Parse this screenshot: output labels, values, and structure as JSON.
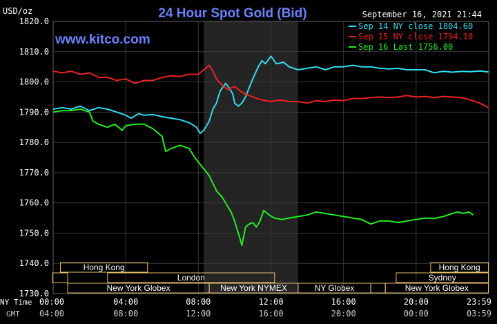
{
  "chart_data": {
    "type": "line",
    "title": "24 Hour Spot Gold (Bid)",
    "watermark": "www.kitco.com",
    "timestamp": "September 16, 2021 21:44",
    "ylabel": "USD/oz",
    "ylim": [
      1730,
      1820
    ],
    "yticks": [
      "1820.0",
      "1810.0",
      "1800.0",
      "1790.0",
      "1780.0",
      "1770.0",
      "1760.0",
      "1750.0",
      "1740.0",
      "1730.0"
    ],
    "xlim": [
      0,
      24
    ],
    "x_row1_label": "NY Time",
    "x_row2_label": "GMT",
    "xticks": [
      {
        "hour": 0,
        "ny": "00:00",
        "gmt": "04:00"
      },
      {
        "hour": 4,
        "ny": "04:00",
        "gmt": "08:00"
      },
      {
        "hour": 8,
        "ny": "08:00",
        "gmt": "12:00"
      },
      {
        "hour": 12,
        "ny": "12:00",
        "gmt": "16:00"
      },
      {
        "hour": 16,
        "ny": "16:00",
        "gmt": "20:00"
      },
      {
        "hour": 20,
        "ny": "20:00",
        "gmt": "00:00"
      },
      {
        "hour": 23.98,
        "ny": "23:59",
        "gmt": "03:59"
      }
    ],
    "shaded_region": [
      8.3,
      13.5
    ],
    "grid": true,
    "legend_position": "top-right",
    "series": [
      {
        "name": "Sep 14 NY close 1804.60",
        "color": "#33ddee",
        "points": [
          [
            0,
            1791
          ],
          [
            0.5,
            1791.5
          ],
          [
            1,
            1791
          ],
          [
            1.5,
            1792
          ],
          [
            2,
            1790.5
          ],
          [
            2.5,
            1791.5
          ],
          [
            3,
            1791
          ],
          [
            3.5,
            1790
          ],
          [
            4,
            1789
          ],
          [
            4.3,
            1788
          ],
          [
            4.7,
            1789.5
          ],
          [
            5,
            1789
          ],
          [
            5.5,
            1789.2
          ],
          [
            6,
            1788.5
          ],
          [
            6.5,
            1788
          ],
          [
            7,
            1787.5
          ],
          [
            7.5,
            1786.5
          ],
          [
            7.9,
            1785
          ],
          [
            8.1,
            1783
          ],
          [
            8.3,
            1784
          ],
          [
            8.6,
            1787
          ],
          [
            8.8,
            1791
          ],
          [
            9,
            1793
          ],
          [
            9.2,
            1797
          ],
          [
            9.5,
            1799.5
          ],
          [
            9.7,
            1798
          ],
          [
            9.9,
            1796
          ],
          [
            10,
            1793
          ],
          [
            10.2,
            1792
          ],
          [
            10.4,
            1793
          ],
          [
            10.6,
            1795
          ],
          [
            10.8,
            1798
          ],
          [
            11,
            1801
          ],
          [
            11.3,
            1805
          ],
          [
            11.5,
            1807
          ],
          [
            11.7,
            1806
          ],
          [
            12,
            1808.5
          ],
          [
            12.3,
            1806
          ],
          [
            12.7,
            1806.5
          ],
          [
            13,
            1805
          ],
          [
            13.5,
            1804
          ],
          [
            14,
            1804.5
          ],
          [
            14.5,
            1805
          ],
          [
            15,
            1804
          ],
          [
            15.5,
            1805
          ],
          [
            16,
            1805
          ],
          [
            16.5,
            1805.5
          ],
          [
            17,
            1805
          ],
          [
            17.5,
            1805
          ],
          [
            18,
            1804.5
          ],
          [
            18.5,
            1804.3
          ],
          [
            19,
            1804.5
          ],
          [
            19.5,
            1804
          ],
          [
            20,
            1804
          ],
          [
            20.5,
            1804
          ],
          [
            21,
            1803
          ],
          [
            21.5,
            1803.5
          ],
          [
            22,
            1803.2
          ],
          [
            22.5,
            1803.5
          ],
          [
            23,
            1803.4
          ],
          [
            23.5,
            1803.6
          ],
          [
            23.98,
            1803.3
          ]
        ]
      },
      {
        "name": "Sep 15 NY close 1794.10",
        "color": "#ee2222",
        "points": [
          [
            0,
            1803.5
          ],
          [
            0.5,
            1803
          ],
          [
            1,
            1803.5
          ],
          [
            1.5,
            1802.5
          ],
          [
            2,
            1803
          ],
          [
            2.5,
            1801.5
          ],
          [
            3,
            1801.5
          ],
          [
            3.5,
            1800.5
          ],
          [
            4,
            1801
          ],
          [
            4.5,
            1799.5
          ],
          [
            5,
            1800.5
          ],
          [
            5.5,
            1800.5
          ],
          [
            6,
            1801.5
          ],
          [
            6.5,
            1802
          ],
          [
            7,
            1801.8
          ],
          [
            7.5,
            1802.5
          ],
          [
            8,
            1802.5
          ],
          [
            8.3,
            1804
          ],
          [
            8.6,
            1805.5
          ],
          [
            8.8,
            1803.5
          ],
          [
            9,
            1801
          ],
          [
            9.3,
            1799
          ],
          [
            9.6,
            1797.5
          ],
          [
            10,
            1798.5
          ],
          [
            10.3,
            1797
          ],
          [
            10.6,
            1796
          ],
          [
            11,
            1795
          ],
          [
            11.5,
            1794
          ],
          [
            12,
            1793.5
          ],
          [
            12.5,
            1794
          ],
          [
            13,
            1793.5
          ],
          [
            13.5,
            1793.5
          ],
          [
            14,
            1793
          ],
          [
            14.5,
            1793.8
          ],
          [
            15,
            1793.5
          ],
          [
            15.5,
            1794
          ],
          [
            16,
            1793.8
          ],
          [
            16.5,
            1794.5
          ],
          [
            17,
            1794.5
          ],
          [
            17.5,
            1794.8
          ],
          [
            18,
            1795
          ],
          [
            18.5,
            1794.8
          ],
          [
            19,
            1795
          ],
          [
            19.5,
            1795.5
          ],
          [
            20,
            1795
          ],
          [
            20.5,
            1795.2
          ],
          [
            21,
            1794.8
          ],
          [
            21.5,
            1795.2
          ],
          [
            22,
            1795
          ],
          [
            22.5,
            1794.8
          ],
          [
            23,
            1794
          ],
          [
            23.5,
            1793
          ],
          [
            23.98,
            1791.5
          ]
        ]
      },
      {
        "name": "Sep 16 Last 1756.00",
        "color": "#22ee22",
        "points": [
          [
            0,
            1790
          ],
          [
            0.5,
            1790.5
          ],
          [
            1,
            1790.5
          ],
          [
            1.5,
            1791
          ],
          [
            2,
            1790
          ],
          [
            2.2,
            1787
          ],
          [
            2.5,
            1786
          ],
          [
            3,
            1785
          ],
          [
            3.4,
            1786
          ],
          [
            3.8,
            1784
          ],
          [
            4,
            1785.5
          ],
          [
            4.5,
            1786
          ],
          [
            5,
            1786
          ],
          [
            5.5,
            1784.5
          ],
          [
            6,
            1782
          ],
          [
            6.2,
            1777
          ],
          [
            6.5,
            1778
          ],
          [
            7,
            1779
          ],
          [
            7.5,
            1778
          ],
          [
            7.8,
            1775
          ],
          [
            8.2,
            1772
          ],
          [
            8.6,
            1769
          ],
          [
            9,
            1764
          ],
          [
            9.3,
            1762
          ],
          [
            9.6,
            1759
          ],
          [
            9.8,
            1757
          ],
          [
            10,
            1754
          ],
          [
            10.2,
            1750
          ],
          [
            10.4,
            1746
          ],
          [
            10.6,
            1752
          ],
          [
            10.8,
            1753
          ],
          [
            11,
            1753.5
          ],
          [
            11.2,
            1752
          ],
          [
            11.4,
            1754
          ],
          [
            11.6,
            1757.5
          ],
          [
            11.9,
            1756
          ],
          [
            12.2,
            1755
          ],
          [
            12.6,
            1754.5
          ],
          [
            13,
            1755
          ],
          [
            13.5,
            1755.5
          ],
          [
            14,
            1756
          ],
          [
            14.5,
            1757
          ],
          [
            15,
            1756.5
          ],
          [
            15.5,
            1756
          ],
          [
            16,
            1755.5
          ],
          [
            16.5,
            1755
          ],
          [
            17,
            1754.5
          ],
          [
            17.5,
            1753
          ],
          [
            18,
            1754
          ],
          [
            18.5,
            1754
          ],
          [
            19,
            1753.5
          ],
          [
            19.5,
            1754
          ],
          [
            20,
            1754.5
          ],
          [
            20.5,
            1755
          ],
          [
            21,
            1754.8
          ],
          [
            21.5,
            1755.5
          ],
          [
            22,
            1756.5
          ],
          [
            22.3,
            1757
          ],
          [
            22.6,
            1756.5
          ],
          [
            22.9,
            1757
          ],
          [
            23.15,
            1756
          ]
        ]
      }
    ],
    "sessions": [
      {
        "label": "Hong Kong",
        "row": 0,
        "start": 0.4,
        "end": 5.2
      },
      {
        "label": "Hong Kong",
        "row": 0,
        "start": 20.8,
        "end": 23.98
      },
      {
        "label": "",
        "row": 1,
        "start": -0.4,
        "end": 0.8
      },
      {
        "label": "London",
        "row": 1,
        "start": 3.0,
        "end": 12.2
      },
      {
        "label": "Sydney",
        "row": 1,
        "start": 18.9,
        "end": 23.98
      },
      {
        "label": "New York Globex",
        "row": 2,
        "start": 0.8,
        "end": 8.6
      },
      {
        "label": "New York NYMEX",
        "row": 2,
        "start": 8.6,
        "end": 13.5
      },
      {
        "label": "NY Globex",
        "row": 2,
        "start": 13.5,
        "end": 17.5
      },
      {
        "label": "",
        "row": 2,
        "start": 17.5,
        "end": 18.3
      },
      {
        "label": "New York Globex",
        "row": 2,
        "start": 18.3,
        "end": 23.98
      }
    ]
  }
}
